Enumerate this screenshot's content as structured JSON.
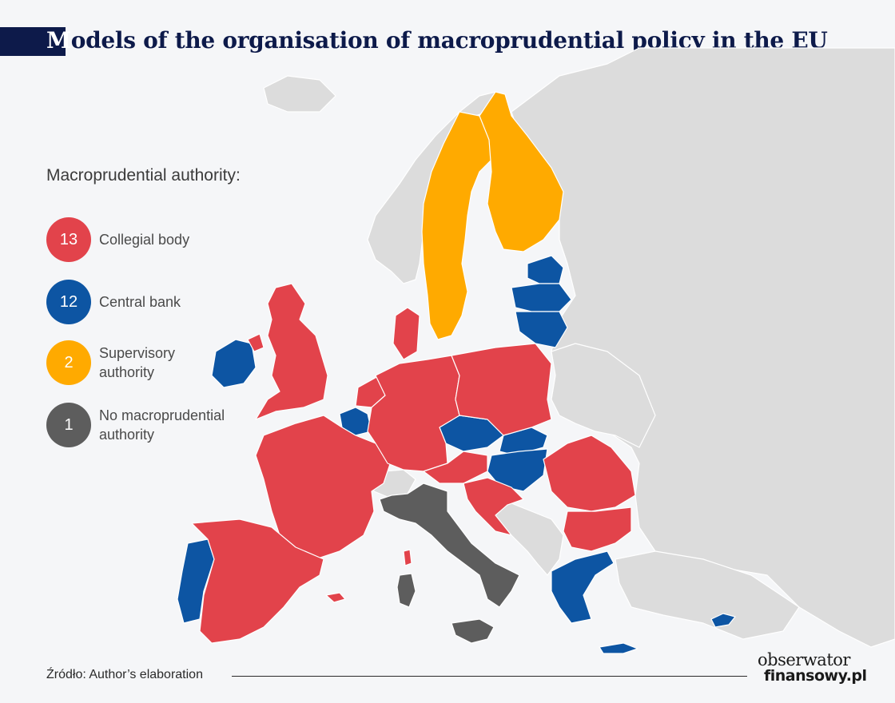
{
  "title": {
    "first_letter": "M",
    "rest": "odels of the organisation of macroprudential policy in the EU"
  },
  "legend": {
    "heading": "Macroprudential authority:",
    "items": [
      {
        "count": "13",
        "label": "Collegial body",
        "color": "#e2434b"
      },
      {
        "count": "12",
        "label": "Central bank",
        "color": "#0d55a3"
      },
      {
        "count": "2",
        "label": "Supervisory authority",
        "color": "#ffaa00"
      },
      {
        "count": "1",
        "label": "No macroprudential authority",
        "color": "#5d5d5d"
      }
    ]
  },
  "colors": {
    "background": "#f5f6f8",
    "non_eu_land": "#dcdcdc",
    "border": "#ffffff",
    "title": "#0d1a4a"
  },
  "source": "Źródło: Author’s elaboration",
  "logo": {
    "top": "obserwator",
    "bottom": "finansowy.pl"
  }
}
